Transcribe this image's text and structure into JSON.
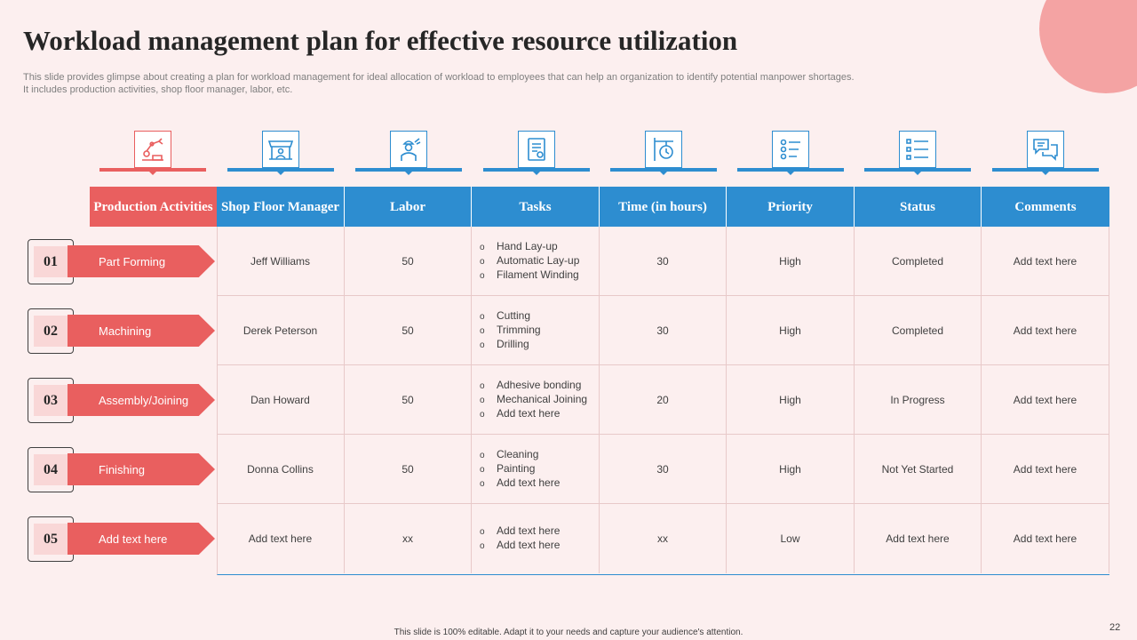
{
  "title": "Workload management plan for effective resource utilization",
  "subtitle_line1": "This slide provides glimpse about creating a plan for workload management for ideal allocation of workload to employees that can help an organization to identify potential manpower shortages.",
  "subtitle_line2": "It includes production activities, shop floor manager, labor, etc.",
  "icons": [
    "robotic-arm-icon",
    "shop-stall-icon",
    "worker-icon",
    "task-document-icon",
    "clock-sign-icon",
    "priority-list-icon",
    "status-checklist-icon",
    "chat-bubbles-icon"
  ],
  "headers": [
    "Production Activities",
    "Shop Floor Manager",
    "Labor",
    "Tasks",
    "Time (in hours)",
    "Priority",
    "Status",
    "Comments"
  ],
  "rows": [
    {
      "num": "01",
      "activity": "Part Forming",
      "manager": "Jeff Williams",
      "labor": "50",
      "tasks": [
        "Hand Lay-up",
        "Automatic Lay-up",
        "Filament Winding"
      ],
      "time": "30",
      "priority": "High",
      "status": "Completed",
      "comments": "Add text here"
    },
    {
      "num": "02",
      "activity": "Machining",
      "manager": "Derek Peterson",
      "labor": "50",
      "tasks": [
        "Cutting",
        "Trimming",
        "Drilling"
      ],
      "time": "30",
      "priority": "High",
      "status": "Completed",
      "comments": "Add text here"
    },
    {
      "num": "03",
      "activity": "Assembly/Joining",
      "manager": "Dan Howard",
      "labor": "50",
      "tasks": [
        "Adhesive bonding",
        "Mechanical Joining",
        "Add text here"
      ],
      "time": "20",
      "priority": "High",
      "status": "In Progress",
      "comments": "Add text here"
    },
    {
      "num": "04",
      "activity": "Finishing",
      "manager": "Donna Collins",
      "labor": "50",
      "tasks": [
        "Cleaning",
        "Painting",
        "Add text here"
      ],
      "time": "30",
      "priority": "High",
      "status": "Not Yet Started",
      "comments": "Add text here"
    },
    {
      "num": "05",
      "activity": "Add text here",
      "manager": "Add text here",
      "labor": "xx",
      "tasks": [
        "Add text here",
        "Add text here"
      ],
      "time": "xx",
      "priority": "Low",
      "status": "Add text here",
      "comments": "Add text here"
    }
  ],
  "bullet_glyph": "o",
  "footer": "This slide is 100% editable. Adapt it to your needs and capture your audience's attention.",
  "page_number": "22",
  "colors": {
    "accent_red": "#e95f5f",
    "accent_blue": "#2d8dd0",
    "background": "#fcefef",
    "circle": "#f4a3a3",
    "number_fill": "#f9d7d7"
  }
}
